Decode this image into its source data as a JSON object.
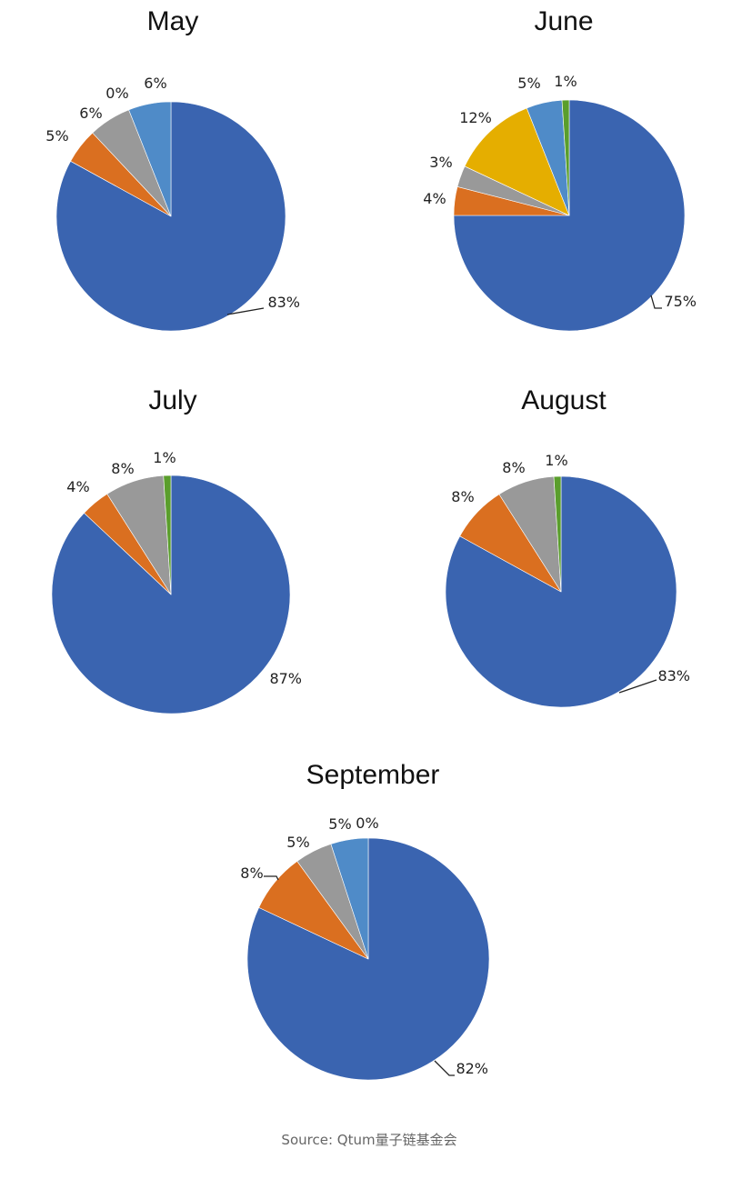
{
  "chart_data": [
    {
      "type": "pie",
      "title": "May",
      "series": [
        {
          "value": 83,
          "label": "83%",
          "color": "#3A64B0"
        },
        {
          "value": 5,
          "label": "5%",
          "color": "#DA6F20"
        },
        {
          "value": 6,
          "label": "6%",
          "color": "#999999"
        },
        {
          "value": 0,
          "label": "0%",
          "color": "#E5AE00"
        },
        {
          "value": 6,
          "label": "6%",
          "color": "#4F8BC8"
        }
      ]
    },
    {
      "type": "pie",
      "title": "June",
      "series": [
        {
          "value": 75,
          "label": "75%",
          "color": "#3A64B0"
        },
        {
          "value": 4,
          "label": "4%",
          "color": "#DA6F20"
        },
        {
          "value": 3,
          "label": "3%",
          "color": "#999999"
        },
        {
          "value": 12,
          "label": "12%",
          "color": "#E5AE00"
        },
        {
          "value": 5,
          "label": "5%",
          "color": "#4F8BC8"
        },
        {
          "value": 1,
          "label": "1%",
          "color": "#5A9E2C"
        }
      ]
    },
    {
      "type": "pie",
      "title": "July",
      "series": [
        {
          "value": 87,
          "label": "87%",
          "color": "#3A64B0"
        },
        {
          "value": 4,
          "label": "4%",
          "color": "#DA6F20"
        },
        {
          "value": 8,
          "label": "8%",
          "color": "#999999"
        },
        {
          "value": 1,
          "label": "1%",
          "color": "#5A9E2C"
        }
      ]
    },
    {
      "type": "pie",
      "title": "August",
      "series": [
        {
          "value": 83,
          "label": "83%",
          "color": "#3A64B0"
        },
        {
          "value": 8,
          "label": "8%",
          "color": "#DA6F20"
        },
        {
          "value": 8,
          "label": "8%",
          "color": "#999999"
        },
        {
          "value": 1,
          "label": "1%",
          "color": "#5A9E2C"
        }
      ]
    },
    {
      "type": "pie",
      "title": "September",
      "series": [
        {
          "value": 82,
          "label": "82%",
          "color": "#3A64B0"
        },
        {
          "value": 8,
          "label": "8%",
          "color": "#DA6F20"
        },
        {
          "value": 5,
          "label": "5%",
          "color": "#999999"
        },
        {
          "value": 5,
          "label": "5%",
          "color": "#4F8BC8"
        },
        {
          "value": 0,
          "label": "0%",
          "color": "#5A9E2C"
        }
      ]
    }
  ],
  "source": "Source: Qtum量子链基金会"
}
